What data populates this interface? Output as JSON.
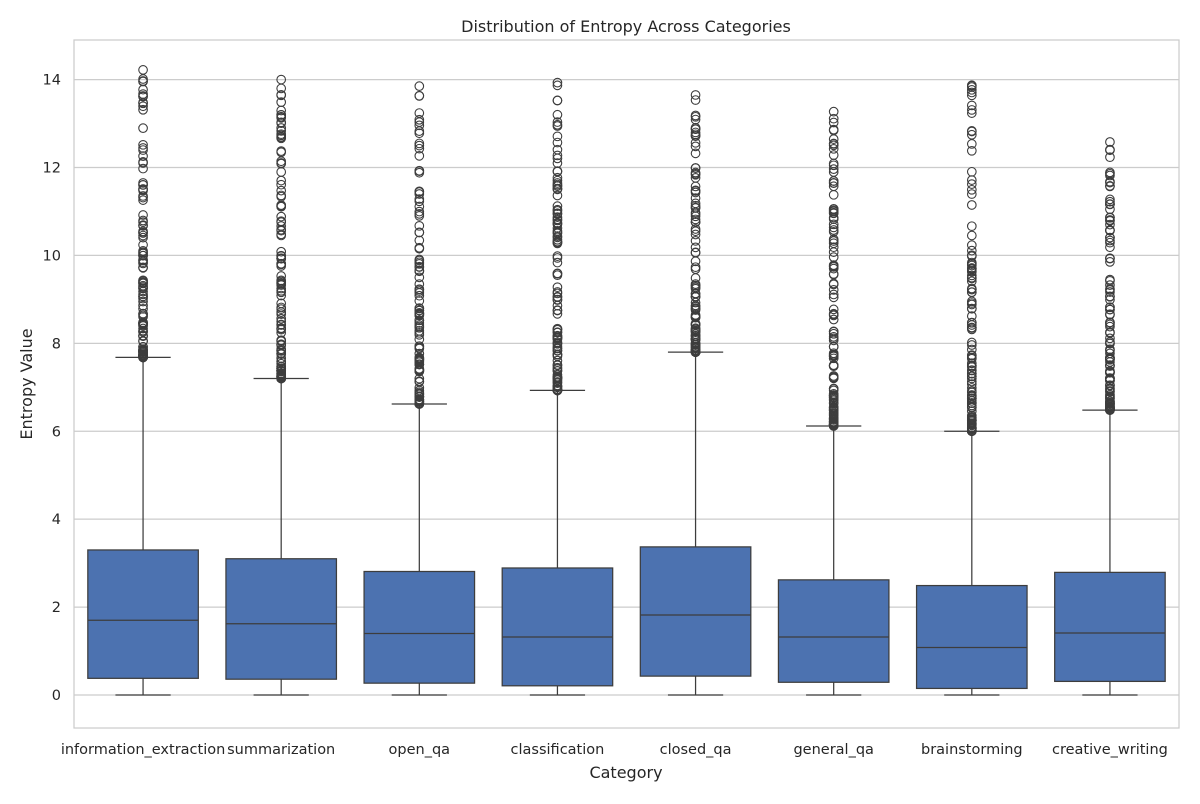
{
  "chart_data": {
    "type": "box",
    "title": "Distribution of Entropy Across Categories",
    "xlabel": "Category",
    "ylabel": "Entropy Value",
    "ylim": [
      -0.75,
      14.9
    ],
    "yticks": [
      0,
      2,
      4,
      6,
      8,
      10,
      12,
      14
    ],
    "grid": true,
    "box_color": "#4c72b0",
    "line_color": "#3d3d3d",
    "categories": [
      "information_extraction",
      "summarization",
      "open_qa",
      "classification",
      "closed_qa",
      "general_qa",
      "brainstorming",
      "creative_writing"
    ],
    "boxes": [
      {
        "category": "information_extraction",
        "whislo": 0,
        "q1": 0.38,
        "med": 1.7,
        "q3": 3.3,
        "whishi": 7.68,
        "outlier_max": 14.22
      },
      {
        "category": "summarization",
        "whislo": 0,
        "q1": 0.36,
        "med": 1.62,
        "q3": 3.1,
        "whishi": 7.2,
        "outlier_max": 14.0
      },
      {
        "category": "open_qa",
        "whislo": 0,
        "q1": 0.27,
        "med": 1.4,
        "q3": 2.81,
        "whishi": 6.62,
        "outlier_max": 13.85
      },
      {
        "category": "classification",
        "whislo": 0,
        "q1": 0.21,
        "med": 1.32,
        "q3": 2.89,
        "whishi": 6.93,
        "outlier_max": 13.93
      },
      {
        "category": "closed_qa",
        "whislo": 0,
        "q1": 0.43,
        "med": 1.82,
        "q3": 3.37,
        "whishi": 7.8,
        "outlier_max": 13.65
      },
      {
        "category": "general_qa",
        "whislo": 0,
        "q1": 0.29,
        "med": 1.32,
        "q3": 2.62,
        "whishi": 6.12,
        "outlier_max": 13.27
      },
      {
        "category": "brainstorming",
        "whislo": 0,
        "q1": 0.15,
        "med": 1.08,
        "q3": 2.49,
        "whishi": 6.0,
        "outlier_max": 13.87
      },
      {
        "category": "creative_writing",
        "whislo": 0,
        "q1": 0.31,
        "med": 1.41,
        "q3": 2.79,
        "whishi": 6.48,
        "outlier_max": 12.58
      }
    ]
  }
}
